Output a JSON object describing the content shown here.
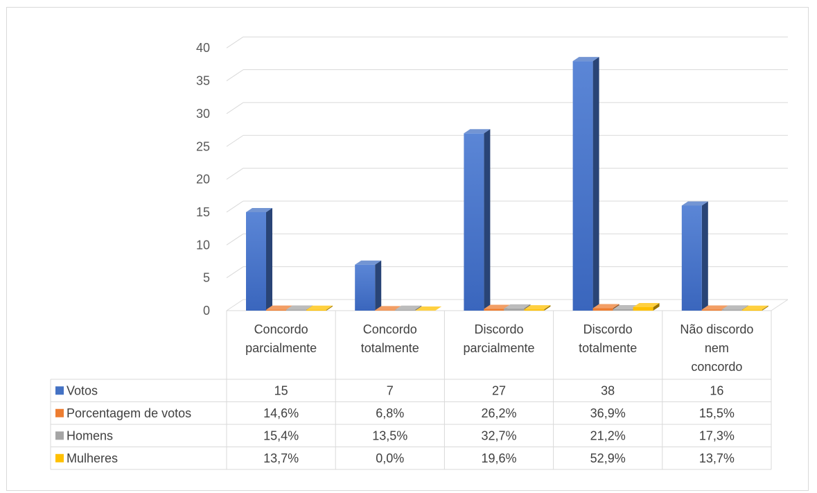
{
  "chart_data": {
    "type": "bar",
    "style": "3d-column-with-data-table",
    "categories": [
      [
        "Concordo",
        "parcialmente"
      ],
      [
        "Concordo",
        "totalmente"
      ],
      [
        "Discordo",
        "parcialmente"
      ],
      [
        "Discordo",
        "totalmente"
      ],
      [
        "Não discordo",
        "nem",
        "concordo"
      ]
    ],
    "series": [
      {
        "name": "Votos",
        "color": "#4472C4",
        "values": [
          15,
          7,
          27,
          38,
          16
        ],
        "labels": [
          "15",
          "7",
          "27",
          "38",
          "16"
        ]
      },
      {
        "name": "Porcentagem de votos",
        "color": "#ED7D31",
        "values": [
          0.146,
          0.068,
          0.262,
          0.369,
          0.155
        ],
        "labels": [
          "14,6%",
          "6,8%",
          "26,2%",
          "36,9%",
          "15,5%"
        ]
      },
      {
        "name": "Homens",
        "color": "#A5A5A5",
        "values": [
          0.154,
          0.135,
          0.327,
          0.212,
          0.173
        ],
        "labels": [
          "15,4%",
          "13,5%",
          "32,7%",
          "21,2%",
          "17,3%"
        ]
      },
      {
        "name": "Mulheres",
        "color": "#FFC000",
        "values": [
          0.137,
          0.0,
          0.196,
          0.529,
          0.137
        ],
        "labels": [
          "13,7%",
          "0,0%",
          "19,6%",
          "52,9%",
          "13,7%"
        ]
      }
    ],
    "y_ticks": [
      "0",
      "5",
      "10",
      "15",
      "20",
      "25",
      "30",
      "35",
      "40"
    ],
    "ylim": [
      0,
      40
    ],
    "grid": true,
    "legend": "data-table-left"
  }
}
